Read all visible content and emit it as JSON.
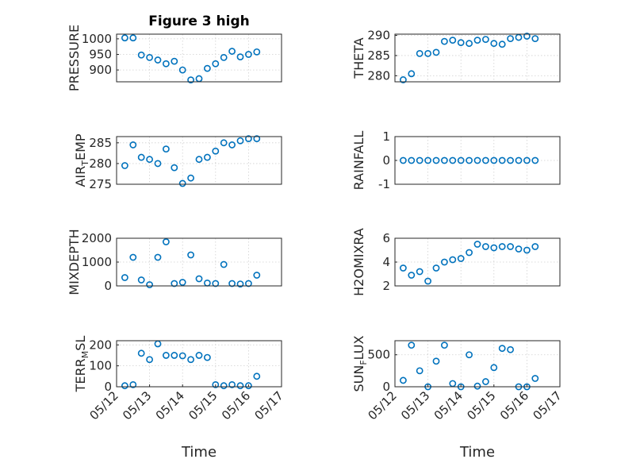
{
  "figure_title": "Figure 3 high",
  "colors": {
    "marker": "#0072BD",
    "axis": "#262626",
    "grid": "#d0d0d0"
  },
  "chart_data": [
    {
      "type": "scatter",
      "ylabel": "PRESSURE",
      "title": "Figure 3 high",
      "yticks": [
        "1000",
        "950",
        "900"
      ],
      "xticks": [],
      "xlabel": "",
      "ylim": [
        862,
        1015
      ],
      "x": [
        "2016-05-12T06:00",
        "2016-05-12T12:00",
        "2016-05-12T18:00",
        "2016-05-13T00:00",
        "2016-05-13T06:00",
        "2016-05-13T12:00",
        "2016-05-13T18:00",
        "2016-05-14T00:00",
        "2016-05-14T06:00",
        "2016-05-14T12:00",
        "2016-05-14T18:00",
        "2016-05-15T00:00",
        "2016-05-15T06:00",
        "2016-05-15T12:00",
        "2016-05-15T18:00",
        "2016-05-16T00:00",
        "2016-05-16T06:00"
      ],
      "y": [
        1003,
        1003,
        948,
        940,
        932,
        920,
        928,
        900,
        868,
        872,
        905,
        920,
        940,
        960,
        942,
        950,
        958
      ]
    },
    {
      "type": "scatter",
      "ylabel": "THETA",
      "yticks": [
        "290",
        "285",
        "280"
      ],
      "xticks": [],
      "xlabel": "",
      "ylim": [
        278.5,
        290.3
      ],
      "x": [
        "2016-05-12T06:00",
        "2016-05-12T12:00",
        "2016-05-12T18:00",
        "2016-05-13T00:00",
        "2016-05-13T06:00",
        "2016-05-13T12:00",
        "2016-05-13T18:00",
        "2016-05-14T00:00",
        "2016-05-14T06:00",
        "2016-05-14T12:00",
        "2016-05-14T18:00",
        "2016-05-15T00:00",
        "2016-05-15T06:00",
        "2016-05-15T12:00",
        "2016-05-15T18:00",
        "2016-05-16T00:00",
        "2016-05-16T06:00"
      ],
      "y": [
        279,
        280.5,
        285.5,
        285.5,
        285.8,
        288.5,
        288.8,
        288.2,
        288,
        288.8,
        289,
        288,
        287.8,
        289.2,
        289.5,
        289.8,
        289.2
      ]
    },
    {
      "type": "scatter",
      "ylabel": "AIR_TEMP",
      "ylabel_parts": [
        "AIR",
        "T",
        "EMP"
      ],
      "yticks": [
        "285",
        "280",
        "275"
      ],
      "xticks": [],
      "xlabel": "",
      "ylim": [
        275,
        286.5
      ],
      "x": [
        "2016-05-12T06:00",
        "2016-05-12T12:00",
        "2016-05-12T18:00",
        "2016-05-13T00:00",
        "2016-05-13T06:00",
        "2016-05-13T12:00",
        "2016-05-13T18:00",
        "2016-05-14T00:00",
        "2016-05-14T06:00",
        "2016-05-14T12:00",
        "2016-05-14T18:00",
        "2016-05-15T00:00",
        "2016-05-15T06:00",
        "2016-05-15T12:00",
        "2016-05-15T18:00",
        "2016-05-16T00:00",
        "2016-05-16T06:00"
      ],
      "y": [
        279.5,
        284.5,
        281.5,
        281,
        280,
        283.5,
        279,
        275.2,
        276.5,
        281,
        281.5,
        283,
        285,
        284.5,
        285.5,
        286,
        286
      ]
    },
    {
      "type": "scatter",
      "ylabel": "RAINFALL",
      "yticks": [
        "1",
        "0",
        "-1"
      ],
      "xticks": [],
      "xlabel": "",
      "ylim": [
        -1,
        1
      ],
      "x": [
        "2016-05-12T06:00",
        "2016-05-12T12:00",
        "2016-05-12T18:00",
        "2016-05-13T00:00",
        "2016-05-13T06:00",
        "2016-05-13T12:00",
        "2016-05-13T18:00",
        "2016-05-14T00:00",
        "2016-05-14T06:00",
        "2016-05-14T12:00",
        "2016-05-14T18:00",
        "2016-05-15T00:00",
        "2016-05-15T06:00",
        "2016-05-15T12:00",
        "2016-05-15T18:00",
        "2016-05-16T00:00",
        "2016-05-16T06:00"
      ],
      "y": [
        0,
        0,
        0,
        0,
        0,
        0,
        0,
        0,
        0,
        0,
        0,
        0,
        0,
        0,
        0,
        0,
        0
      ]
    },
    {
      "type": "scatter",
      "ylabel": "MIXDEPTH",
      "yticks": [
        "2000",
        "1000",
        "0"
      ],
      "xticks": [],
      "xlabel": "",
      "ylim": [
        0,
        2000
      ],
      "x": [
        "2016-05-12T06:00",
        "2016-05-12T12:00",
        "2016-05-12T18:00",
        "2016-05-13T00:00",
        "2016-05-13T06:00",
        "2016-05-13T12:00",
        "2016-05-13T18:00",
        "2016-05-14T00:00",
        "2016-05-14T06:00",
        "2016-05-14T12:00",
        "2016-05-14T18:00",
        "2016-05-15T00:00",
        "2016-05-15T06:00",
        "2016-05-15T12:00",
        "2016-05-15T18:00",
        "2016-05-16T00:00",
        "2016-05-16T06:00"
      ],
      "y": [
        350,
        1200,
        250,
        50,
        1200,
        1850,
        100,
        150,
        1300,
        300,
        120,
        100,
        900,
        100,
        80,
        100,
        450
      ]
    },
    {
      "type": "scatter",
      "ylabel": "H2OMIXRA",
      "yticks": [
        "6",
        "4",
        "2"
      ],
      "xticks": [],
      "xlabel": "",
      "ylim": [
        2,
        6
      ],
      "x": [
        "2016-05-12T06:00",
        "2016-05-12T12:00",
        "2016-05-12T18:00",
        "2016-05-13T00:00",
        "2016-05-13T06:00",
        "2016-05-13T12:00",
        "2016-05-13T18:00",
        "2016-05-14T00:00",
        "2016-05-14T06:00",
        "2016-05-14T12:00",
        "2016-05-14T18:00",
        "2016-05-15T00:00",
        "2016-05-15T06:00",
        "2016-05-15T12:00",
        "2016-05-15T18:00",
        "2016-05-16T00:00",
        "2016-05-16T06:00"
      ],
      "y": [
        3.5,
        2.9,
        3.2,
        2.4,
        3.5,
        4,
        4.2,
        4.3,
        4.8,
        5.5,
        5.3,
        5.2,
        5.3,
        5.3,
        5.1,
        5,
        5.3
      ]
    },
    {
      "type": "scatter",
      "ylabel": "TERR_MSL",
      "ylabel_parts": [
        "TERR",
        "M",
        "SL"
      ],
      "yticks": [
        "200",
        "100",
        "0"
      ],
      "xticks": [
        "05/12",
        "05/13",
        "05/14",
        "05/15",
        "05/16",
        "05/17"
      ],
      "xlabel": "Time",
      "ylim": [
        0,
        220
      ],
      "x": [
        "2016-05-12T06:00",
        "2016-05-12T12:00",
        "2016-05-12T18:00",
        "2016-05-13T00:00",
        "2016-05-13T06:00",
        "2016-05-13T12:00",
        "2016-05-13T18:00",
        "2016-05-14T00:00",
        "2016-05-14T06:00",
        "2016-05-14T12:00",
        "2016-05-14T18:00",
        "2016-05-15T00:00",
        "2016-05-15T06:00",
        "2016-05-15T12:00",
        "2016-05-15T18:00",
        "2016-05-16T00:00",
        "2016-05-16T06:00"
      ],
      "y": [
        5,
        10,
        160,
        130,
        205,
        150,
        150,
        148,
        130,
        150,
        140,
        10,
        5,
        10,
        5,
        5,
        50
      ]
    },
    {
      "type": "scatter",
      "ylabel": "SUN_FLUX",
      "ylabel_parts": [
        "SUN",
        "F",
        "LUX"
      ],
      "yticks": [
        "500",
        "0"
      ],
      "xticks": [
        "05/12",
        "05/13",
        "05/14",
        "05/15",
        "05/16",
        "05/17"
      ],
      "xlabel": "Time",
      "ylim": [
        0,
        720
      ],
      "x": [
        "2016-05-12T06:00",
        "2016-05-12T12:00",
        "2016-05-12T18:00",
        "2016-05-13T00:00",
        "2016-05-13T06:00",
        "2016-05-13T12:00",
        "2016-05-13T18:00",
        "2016-05-14T00:00",
        "2016-05-14T06:00",
        "2016-05-14T12:00",
        "2016-05-14T18:00",
        "2016-05-15T00:00",
        "2016-05-15T06:00",
        "2016-05-15T12:00",
        "2016-05-15T18:00",
        "2016-05-16T00:00",
        "2016-05-16T06:00"
      ],
      "y": [
        100,
        650,
        250,
        0,
        400,
        650,
        50,
        0,
        500,
        10,
        80,
        300,
        600,
        580,
        0,
        0,
        130
      ]
    }
  ]
}
